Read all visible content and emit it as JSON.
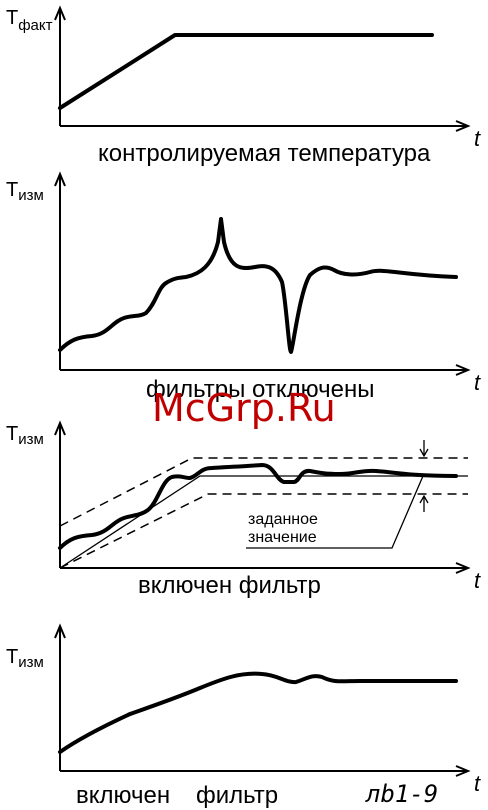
{
  "panels": [
    {
      "ylabel_main": "T",
      "ylabel_sub": "факт",
      "xlabel": "t",
      "caption": "контролируемая температура"
    },
    {
      "ylabel_main": "T",
      "ylabel_sub": "изм",
      "xlabel": "t",
      "caption": "фильтры отключены"
    },
    {
      "ylabel_main": "T",
      "ylabel_sub": "изм",
      "xlabel": "t",
      "caption": "включен фильтр",
      "annotation_line1": "заданное",
      "annotation_line2": "значение"
    },
    {
      "ylabel_main": "T",
      "ylabel_sub": "изм",
      "xlabel": "t",
      "caption_word1": "включен",
      "caption_word2": "фильтр"
    }
  ],
  "watermark": "McGrp.Ru",
  "figure_code": "лb1-9",
  "colors": {
    "ink": "#000000",
    "watermark": "#c00000"
  }
}
